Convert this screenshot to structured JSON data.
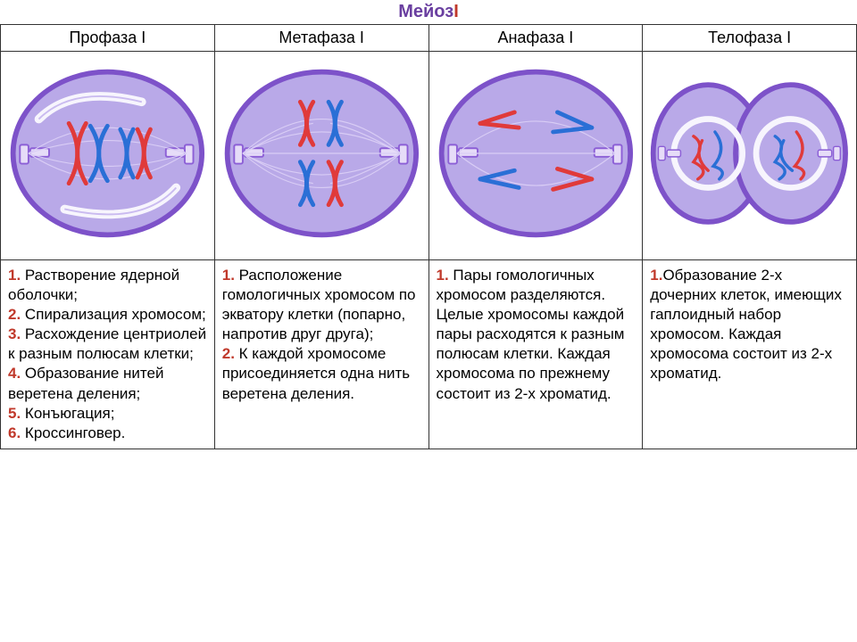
{
  "title_main": "Мейоз",
  "title_suffix": "I",
  "title_color_main": "#6a3fa0",
  "title_color_suffix": "#c0392b",
  "title_fontsize": 20,
  "columns": [
    {
      "header": "Профаза I"
    },
    {
      "header": "Метафаза I"
    },
    {
      "header": "Анафаза I"
    },
    {
      "header": "Телофаза I"
    }
  ],
  "diagram": {
    "cell_fill": "#b9a9e8",
    "cell_stroke": "#7d52c9",
    "cell_stroke_width": 6,
    "spindle_color": "#d9cdf5",
    "spindle_width": 1.2,
    "centriole_color": "#8c5fd6",
    "centriole_fill": "#e6dcf8",
    "chrom_red": "#e03a3a",
    "chrom_blue": "#2a6fd6",
    "chrom_width": 5,
    "nuclear_envelope": "#f7f5fd",
    "nuclear_env_stroke": "#cabbf0",
    "background": "#ffffff"
  },
  "descriptions": {
    "prophase": [
      {
        "n": "1.",
        "t": " Растворение ядерной оболочки;"
      },
      {
        "n": "2.",
        "t": " Спирализация хромосом;"
      },
      {
        "n": "3.",
        "t": " Расхождение центриолей к разным полюсам клетки;"
      },
      {
        "n": "4.",
        "t": " Образование нитей веретена деления;"
      },
      {
        "n": "5.",
        "t": " Конъюгация;"
      },
      {
        "n": "6.",
        "t": " Кроссинговер."
      }
    ],
    "metaphase": [
      {
        "n": "1.",
        "t": " Расположение гомологичных хромосом по экватору клетки (попарно, напротив друг друга);"
      },
      {
        "n": "2.",
        "t": " К каждой хромосоме присоединяется одна нить веретена деления."
      }
    ],
    "anaphase": [
      {
        "n": "1.",
        "t": " Пары гомологичных хромосом разделяются. Целые хромосомы каждой пары расходятся к разным полюсам клетки. Каждая хромосома по прежнему состоит из 2-х хроматид."
      }
    ],
    "telophase": [
      {
        "n": "1.",
        "t": "Образование 2-х дочерних клеток, имеющих гаплоидный набор хромосом. Каждая хромосома состоит из 2-х хроматид."
      }
    ]
  },
  "num_color": "#c0392b",
  "text_color": "#202020",
  "header_fontsize": 18,
  "desc_fontsize": 17
}
